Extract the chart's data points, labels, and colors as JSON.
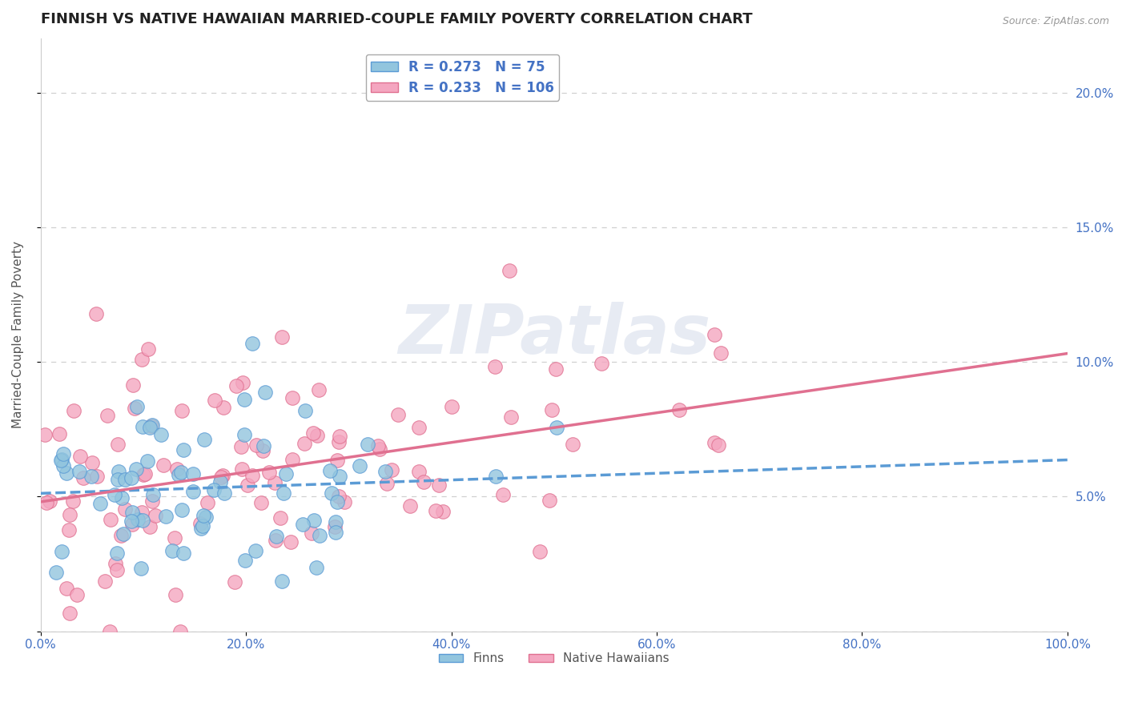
{
  "title": "FINNISH VS NATIVE HAWAIIAN MARRIED-COUPLE FAMILY POVERTY CORRELATION CHART",
  "source": "Source: ZipAtlas.com",
  "ylabel": "Married-Couple Family Poverty",
  "xlim": [
    0,
    1
  ],
  "ylim": [
    0,
    0.22
  ],
  "xticks": [
    0.0,
    0.2,
    0.4,
    0.6,
    0.8,
    1.0
  ],
  "xticklabels": [
    "0.0%",
    "20.0%",
    "40.0%",
    "60.0%",
    "80.0%",
    "100.0%"
  ],
  "yticks": [
    0.0,
    0.05,
    0.1,
    0.15,
    0.2
  ],
  "yticklabels_right": [
    "",
    "5.0%",
    "10.0%",
    "15.0%",
    "20.0%"
  ],
  "legend_R_finns": "0.273",
  "legend_N_finns": "75",
  "legend_R_hawaiian": "0.233",
  "legend_N_hawaiian": "106",
  "color_finns": "#92c5de",
  "color_hawaiian": "#f4a6c0",
  "line_color_finns": "#5b9bd5",
  "line_color_hawaiian": "#e07090",
  "watermark": "ZIPatlas",
  "background_color": "#ffffff",
  "grid_color": "#d0d0d0",
  "title_fontsize": 13,
  "axis_fontsize": 11,
  "tick_fontsize": 11,
  "legend_fontsize": 12,
  "tick_color": "#4472c4"
}
